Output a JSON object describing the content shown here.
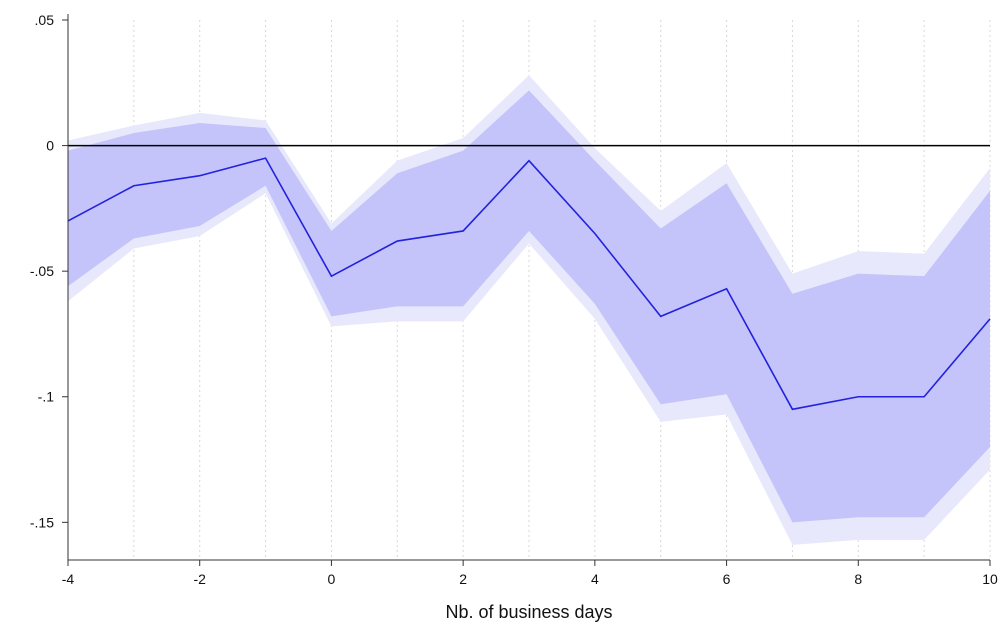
{
  "chart_data": {
    "type": "line",
    "title": "",
    "xlabel": "Nb. of business days",
    "ylabel": "",
    "x": [
      -4,
      -3,
      -2,
      -1,
      0,
      1,
      2,
      3,
      4,
      5,
      6,
      7,
      8,
      9,
      10
    ],
    "series": [
      {
        "role": "point_estimate",
        "color": "#2222dd",
        "values": [
          -0.03,
          -0.016,
          -0.012,
          -0.005,
          -0.052,
          -0.038,
          -0.034,
          -0.006,
          -0.035,
          -0.068,
          -0.057,
          -0.105,
          -0.1,
          -0.1,
          -0.069
        ]
      },
      {
        "role": "inner_band",
        "color": "#c4c4fa",
        "lower": [
          -0.056,
          -0.037,
          -0.032,
          -0.016,
          -0.068,
          -0.064,
          -0.064,
          -0.034,
          -0.063,
          -0.103,
          -0.099,
          -0.15,
          -0.148,
          -0.148,
          -0.12
        ],
        "upper": [
          -0.002,
          0.005,
          0.009,
          0.007,
          -0.034,
          -0.011,
          -0.002,
          0.022,
          -0.006,
          -0.033,
          -0.015,
          -0.059,
          -0.051,
          -0.052,
          -0.018
        ]
      },
      {
        "role": "outer_band",
        "color": "#e8e8fc",
        "lower": [
          -0.062,
          -0.041,
          -0.036,
          -0.019,
          -0.072,
          -0.07,
          -0.07,
          -0.039,
          -0.069,
          -0.11,
          -0.107,
          -0.159,
          -0.157,
          -0.157,
          -0.129
        ],
        "upper": [
          0.002,
          0.008,
          0.013,
          0.01,
          -0.031,
          -0.006,
          0.003,
          0.028,
          -0.001,
          -0.026,
          -0.007,
          -0.051,
          -0.042,
          -0.043,
          -0.009
        ]
      }
    ],
    "reference_line": {
      "y": 0,
      "color": "#000000"
    },
    "xlim": [
      -4,
      10
    ],
    "ylim": [
      -0.165,
      0.05
    ],
    "xticks": [
      -4,
      -2,
      0,
      2,
      4,
      6,
      8,
      10
    ],
    "xtick_labels": [
      "-4",
      "-2",
      "0",
      "2",
      "4",
      "6",
      "8",
      "10"
    ],
    "yticks": [
      0.05,
      0,
      -0.05,
      -0.1,
      -0.15
    ],
    "ytick_labels": [
      ".05",
      "0",
      "-.05",
      "-.1",
      "-.15"
    ],
    "grid": "vertical dotted",
    "legend": "none"
  }
}
